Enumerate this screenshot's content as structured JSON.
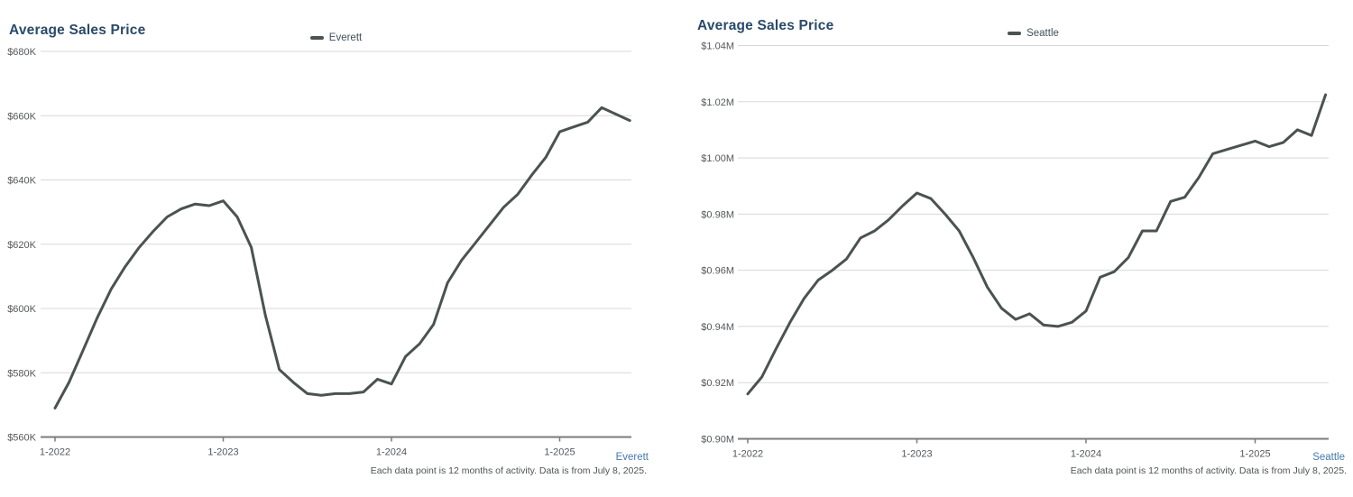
{
  "colors": {
    "title": "#2a4a69",
    "line": "#4a5351",
    "link": "#4679ae",
    "grid": "#d8d8d8",
    "axis": "#7b7b7b",
    "tick_text": "#54585b",
    "footnote_text": "#4e5254"
  },
  "charts": [
    {
      "title": "Average Sales Price",
      "legend_label": "Everett",
      "region_link": "Everett",
      "footnote": "Each data point is 12 months of activity. Data is from July 8, 2025.",
      "chart_data": {
        "type": "line",
        "title": "Average Sales Price",
        "legend": [
          "Everett"
        ],
        "legend_position": "top-center",
        "grid": "horizontal",
        "ylim": [
          560000,
          680000
        ],
        "y_ticks": [
          {
            "label": "$680K",
            "value": 680000
          },
          {
            "label": "$660K",
            "value": 660000
          },
          {
            "label": "$640K",
            "value": 640000
          },
          {
            "label": "$620K",
            "value": 620000
          },
          {
            "label": "$600K",
            "value": 600000
          },
          {
            "label": "$580K",
            "value": 580000
          },
          {
            "label": "$560K",
            "value": 560000
          }
        ],
        "x_tick_labels": [
          "1-2022",
          "1-2023",
          "1-2024",
          "1-2025"
        ],
        "x": [
          "1-2022",
          "2-2022",
          "3-2022",
          "4-2022",
          "5-2022",
          "6-2022",
          "7-2022",
          "8-2022",
          "9-2022",
          "10-2022",
          "11-2022",
          "12-2022",
          "1-2023",
          "2-2023",
          "3-2023",
          "4-2023",
          "5-2023",
          "6-2023",
          "7-2023",
          "8-2023",
          "9-2023",
          "10-2023",
          "11-2023",
          "12-2023",
          "1-2024",
          "2-2024",
          "3-2024",
          "4-2024",
          "5-2024",
          "6-2024",
          "7-2024",
          "8-2024",
          "9-2024",
          "10-2024",
          "11-2024",
          "12-2024",
          "1-2025",
          "2-2025",
          "3-2025",
          "4-2025",
          "5-2025",
          "6-2025"
        ],
        "series": [
          {
            "name": "Everett",
            "values": [
              569000,
              577000,
              587000,
              597000,
              606000,
              613000,
              619000,
              624000,
              628500,
              631000,
              632500,
              632000,
              633500,
              628500,
              619000,
              598000,
              581000,
              577000,
              573500,
              573000,
              573500,
              573500,
              574000,
              578000,
              576500,
              585000,
              589000,
              595000,
              608000,
              615000,
              620500,
              626000,
              631500,
              635500,
              641500,
              647000,
              655000,
              656500,
              658000,
              662500,
              660500,
              658500
            ]
          }
        ]
      }
    },
    {
      "title": "Average Sales Price",
      "legend_label": "Seattle",
      "region_link": "Seattle",
      "footnote": "Each data point is 12 months of activity. Data is from July 8, 2025.",
      "chart_data": {
        "type": "line",
        "title": "Average Sales Price",
        "legend": [
          "Seattle"
        ],
        "legend_position": "top-center",
        "grid": "horizontal",
        "ylim": [
          900000,
          1040000
        ],
        "y_ticks": [
          {
            "label": "$1.04M",
            "value": 1040000
          },
          {
            "label": "$1.02M",
            "value": 1020000
          },
          {
            "label": "$1.00M",
            "value": 1000000
          },
          {
            "label": "$0.98M",
            "value": 980000
          },
          {
            "label": "$0.96M",
            "value": 960000
          },
          {
            "label": "$0.94M",
            "value": 940000
          },
          {
            "label": "$0.92M",
            "value": 920000
          },
          {
            "label": "$0.90M",
            "value": 900000
          }
        ],
        "x_tick_labels": [
          "1-2022",
          "1-2023",
          "1-2024",
          "1-2025"
        ],
        "x": [
          "1-2022",
          "2-2022",
          "3-2022",
          "4-2022",
          "5-2022",
          "6-2022",
          "7-2022",
          "8-2022",
          "9-2022",
          "10-2022",
          "11-2022",
          "12-2022",
          "1-2023",
          "2-2023",
          "3-2023",
          "4-2023",
          "5-2023",
          "6-2023",
          "7-2023",
          "8-2023",
          "9-2023",
          "10-2023",
          "11-2023",
          "12-2023",
          "1-2024",
          "2-2024",
          "3-2024",
          "4-2024",
          "5-2024",
          "6-2024",
          "7-2024",
          "8-2024",
          "9-2024",
          "10-2024",
          "11-2024",
          "12-2024",
          "1-2025",
          "2-2025",
          "3-2025",
          "4-2025",
          "5-2025",
          "6-2025"
        ],
        "series": [
          {
            "name": "Seattle",
            "values": [
              916000,
              922000,
              932000,
              941500,
              950000,
              956500,
              960000,
              964000,
              971500,
              974000,
              978000,
              983000,
              987500,
              985500,
              980000,
              974000,
              964500,
              954000,
              946500,
              942500,
              944500,
              940500,
              940000,
              941500,
              945500,
              957500,
              959500,
              964500,
              974000,
              974000,
              984500,
              986000,
              993000,
              1001500,
              1003000,
              1004500,
              1006000,
              1004000,
              1005500,
              1010000,
              1008000,
              1022500
            ]
          }
        ]
      }
    }
  ]
}
